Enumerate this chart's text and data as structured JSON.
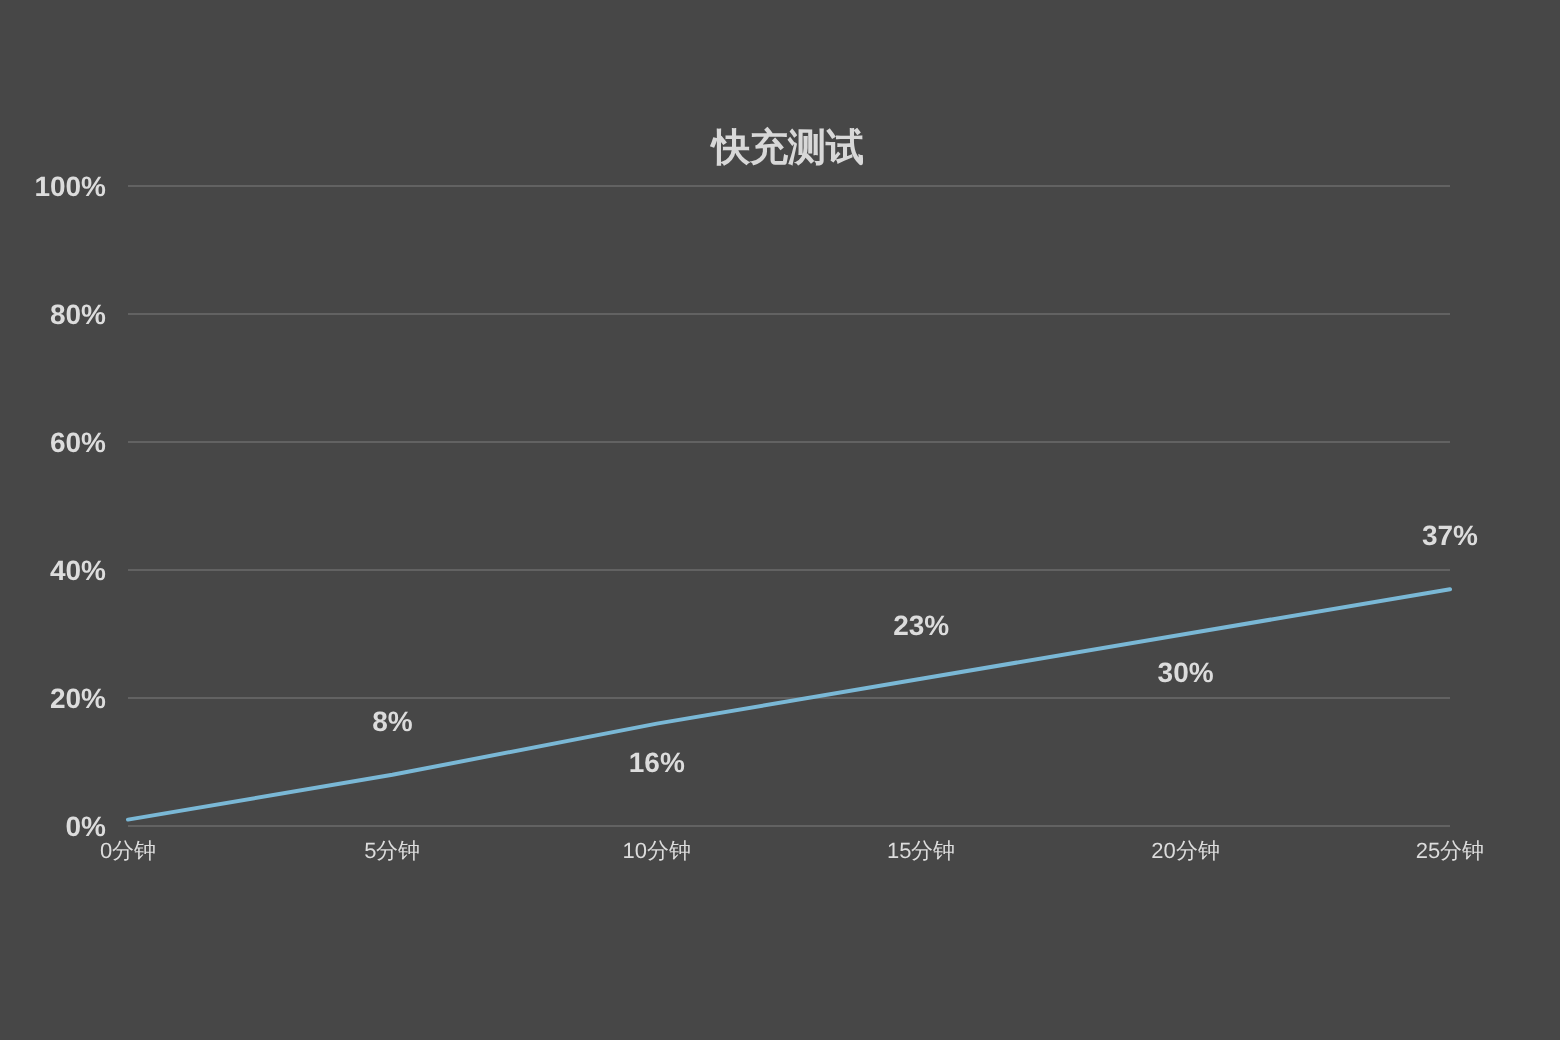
{
  "chart_data": {
    "type": "line",
    "title": "快充测试",
    "categories": [
      "0分钟",
      "5分钟",
      "10分钟",
      "15分钟",
      "20分钟",
      "25分钟"
    ],
    "series": [
      {
        "color": "#7ab8d6",
        "values": [
          1,
          8,
          16,
          23,
          30,
          37
        ],
        "value_labels": [
          null,
          "8%",
          "16%",
          "23%",
          "30%",
          "37%"
        ]
      }
    ],
    "ylim": [
      0,
      100
    ],
    "yticks": [
      {
        "value": 0,
        "label": "0%"
      },
      {
        "value": 20,
        "label": "20%"
      },
      {
        "value": 40,
        "label": "40%"
      },
      {
        "value": 60,
        "label": "60%"
      },
      {
        "value": 80,
        "label": "80%"
      },
      {
        "value": 100,
        "label": "100%"
      }
    ],
    "grid": "y",
    "marker": "none",
    "line_style": "solid"
  }
}
